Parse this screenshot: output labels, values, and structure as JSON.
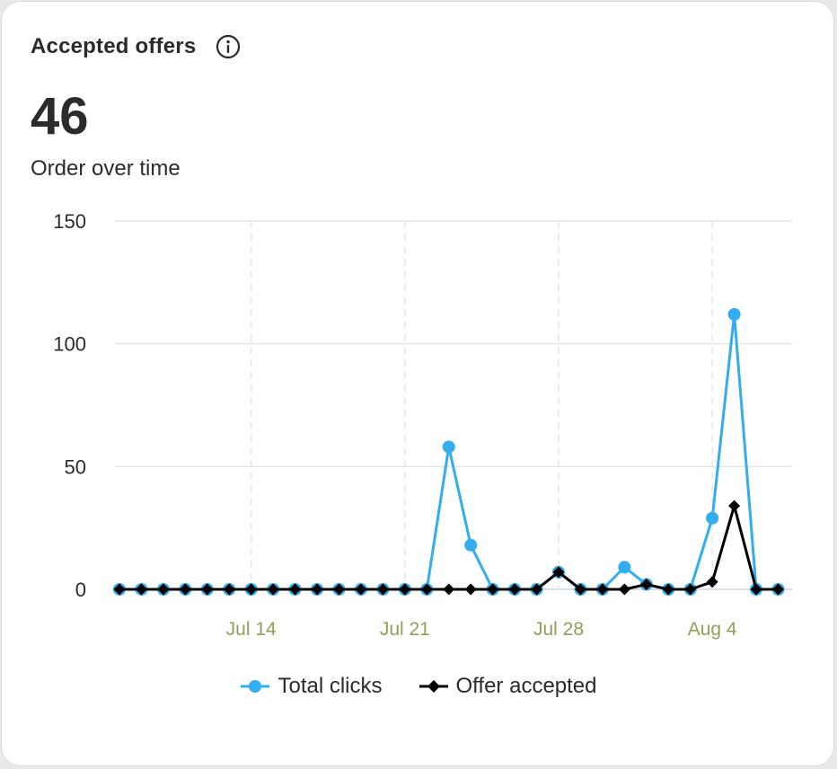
{
  "card": {
    "title": "Accepted offers",
    "info_icon": "info-circle-icon",
    "metric_value": "46",
    "subtitle": "Order over time"
  },
  "colors": {
    "total_clicks": "#32adf0",
    "offer_accepted": "#000000",
    "x_tick_label": "#8ea157",
    "y_tick_label": "#2b2b2e",
    "gridline": "#e6e6ea"
  },
  "chart_data": {
    "type": "line",
    "x": [
      "Jul 8",
      "Jul 9",
      "Jul 10",
      "Jul 11",
      "Jul 12",
      "Jul 13",
      "Jul 14",
      "Jul 15",
      "Jul 16",
      "Jul 17",
      "Jul 18",
      "Jul 19",
      "Jul 20",
      "Jul 21",
      "Jul 22",
      "Jul 23",
      "Jul 24",
      "Jul 25",
      "Jul 26",
      "Jul 27",
      "Jul 28",
      "Jul 29",
      "Jul 30",
      "Jul 31",
      "Aug 1",
      "Aug 2",
      "Aug 3",
      "Aug 4",
      "Aug 5",
      "Aug 6",
      "Aug 7"
    ],
    "x_ticks": [
      "Jul 14",
      "Jul 21",
      "Jul 28",
      "Aug 4"
    ],
    "y_ticks": [
      0,
      50,
      100,
      150
    ],
    "ylim": [
      0,
      150
    ],
    "grid": {
      "horizontal": true,
      "vertical_dashed_at_ticks": true
    },
    "legend_position": "bottom-center",
    "series": [
      {
        "name": "Total clicks",
        "marker": "circle",
        "values": [
          0,
          0,
          0,
          0,
          0,
          0,
          0,
          0,
          0,
          0,
          0,
          0,
          0,
          0,
          0,
          58,
          18,
          0,
          0,
          0,
          7,
          0,
          0,
          9,
          2,
          0,
          0,
          29,
          112,
          0,
          0
        ]
      },
      {
        "name": "Offer accepted",
        "marker": "diamond",
        "values": [
          0,
          0,
          0,
          0,
          0,
          0,
          0,
          0,
          0,
          0,
          0,
          0,
          0,
          0,
          0,
          0,
          0,
          0,
          0,
          0,
          7,
          0,
          0,
          0,
          2,
          0,
          0,
          3,
          34,
          0,
          0
        ]
      }
    ]
  }
}
